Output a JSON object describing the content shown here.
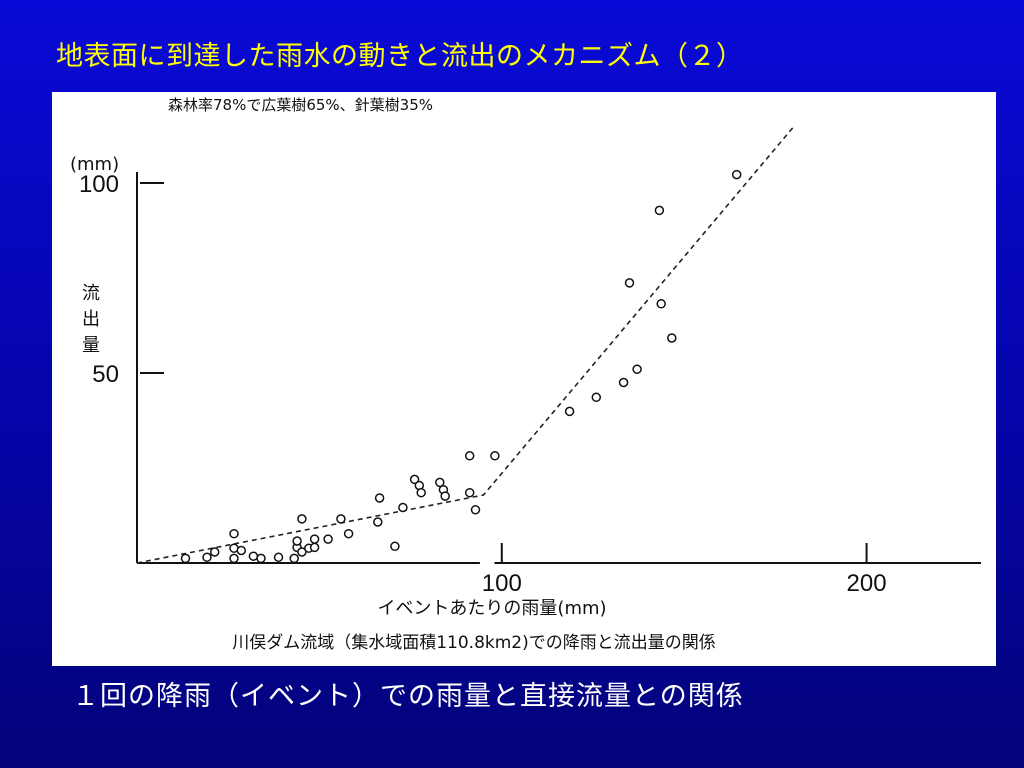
{
  "slide": {
    "title": "地表面に到達した雨水の動きと流出のメカニズム（２）",
    "caption": "１回の降雨（イベント）での雨量と直接流量との関係"
  },
  "colors": {
    "background": "#0404a8",
    "title": "#ffff00",
    "caption": "#ffffff",
    "panel": "#ffffff"
  },
  "chart_data": {
    "type": "scatter",
    "note": "森林率78%で広葉樹65%、針葉樹35%",
    "unit_label": "(mm)",
    "ylabel": "流出量",
    "xlabel": "イベントあたりの雨量(mm)",
    "caption": "川俣ダム流域（集水域面積110.8km2)での降雨と流出量の関係",
    "xlim": [
      0,
      230
    ],
    "ylim": [
      0,
      110
    ],
    "x_ticks": [
      {
        "value": 100,
        "label": "100"
      },
      {
        "value": 200,
        "label": "200"
      }
    ],
    "y_ticks": [
      {
        "value": 100,
        "label": "100"
      },
      {
        "value": 50,
        "label": "50"
      }
    ],
    "grid": false,
    "points": [
      {
        "x": 13.3,
        "y": 1.2
      },
      {
        "x": 19.2,
        "y": 1.5
      },
      {
        "x": 21.3,
        "y": 2.9
      },
      {
        "x": 26.6,
        "y": 7.7
      },
      {
        "x": 26.6,
        "y": 3.9
      },
      {
        "x": 26.6,
        "y": 1.2
      },
      {
        "x": 28.6,
        "y": 3.3
      },
      {
        "x": 31.9,
        "y": 1.8
      },
      {
        "x": 34.0,
        "y": 1.2
      },
      {
        "x": 38.8,
        "y": 1.5
      },
      {
        "x": 43.1,
        "y": 1.2
      },
      {
        "x": 43.9,
        "y": 4.1
      },
      {
        "x": 43.9,
        "y": 5.8
      },
      {
        "x": 45.2,
        "y": 11.6
      },
      {
        "x": 45.2,
        "y": 2.9
      },
      {
        "x": 47.1,
        "y": 3.9
      },
      {
        "x": 48.7,
        "y": 6.3
      },
      {
        "x": 48.7,
        "y": 4.1
      },
      {
        "x": 52.4,
        "y": 6.3
      },
      {
        "x": 55.9,
        "y": 11.6
      },
      {
        "x": 58.0,
        "y": 7.7
      },
      {
        "x": 66.0,
        "y": 10.8
      },
      {
        "x": 66.5,
        "y": 17.1
      },
      {
        "x": 70.7,
        "y": 4.4
      },
      {
        "x": 72.9,
        "y": 14.6
      },
      {
        "x": 76.1,
        "y": 22.0
      },
      {
        "x": 77.4,
        "y": 20.4
      },
      {
        "x": 77.9,
        "y": 18.5
      },
      {
        "x": 83.0,
        "y": 21.2
      },
      {
        "x": 84.0,
        "y": 19.3
      },
      {
        "x": 84.5,
        "y": 17.6
      },
      {
        "x": 91.2,
        "y": 18.5
      },
      {
        "x": 91.2,
        "y": 28.2
      },
      {
        "x": 92.8,
        "y": 14.0
      },
      {
        "x": 98.1,
        "y": 28.2
      },
      {
        "x": 118.6,
        "y": 39.9
      },
      {
        "x": 125.9,
        "y": 43.6
      },
      {
        "x": 133.4,
        "y": 47.5
      },
      {
        "x": 135.0,
        "y": 73.7
      },
      {
        "x": 137.1,
        "y": 51.0
      },
      {
        "x": 143.2,
        "y": 92.8
      },
      {
        "x": 143.7,
        "y": 68.2
      },
      {
        "x": 146.6,
        "y": 59.2
      },
      {
        "x": 164.4,
        "y": 102.2
      }
    ],
    "trend_line": {
      "style": "dashed",
      "points": [
        {
          "x": 0,
          "y": 0
        },
        {
          "x": 95.0,
          "y": 17.9
        },
        {
          "x": 180.0,
          "y": 114.8
        }
      ]
    }
  }
}
